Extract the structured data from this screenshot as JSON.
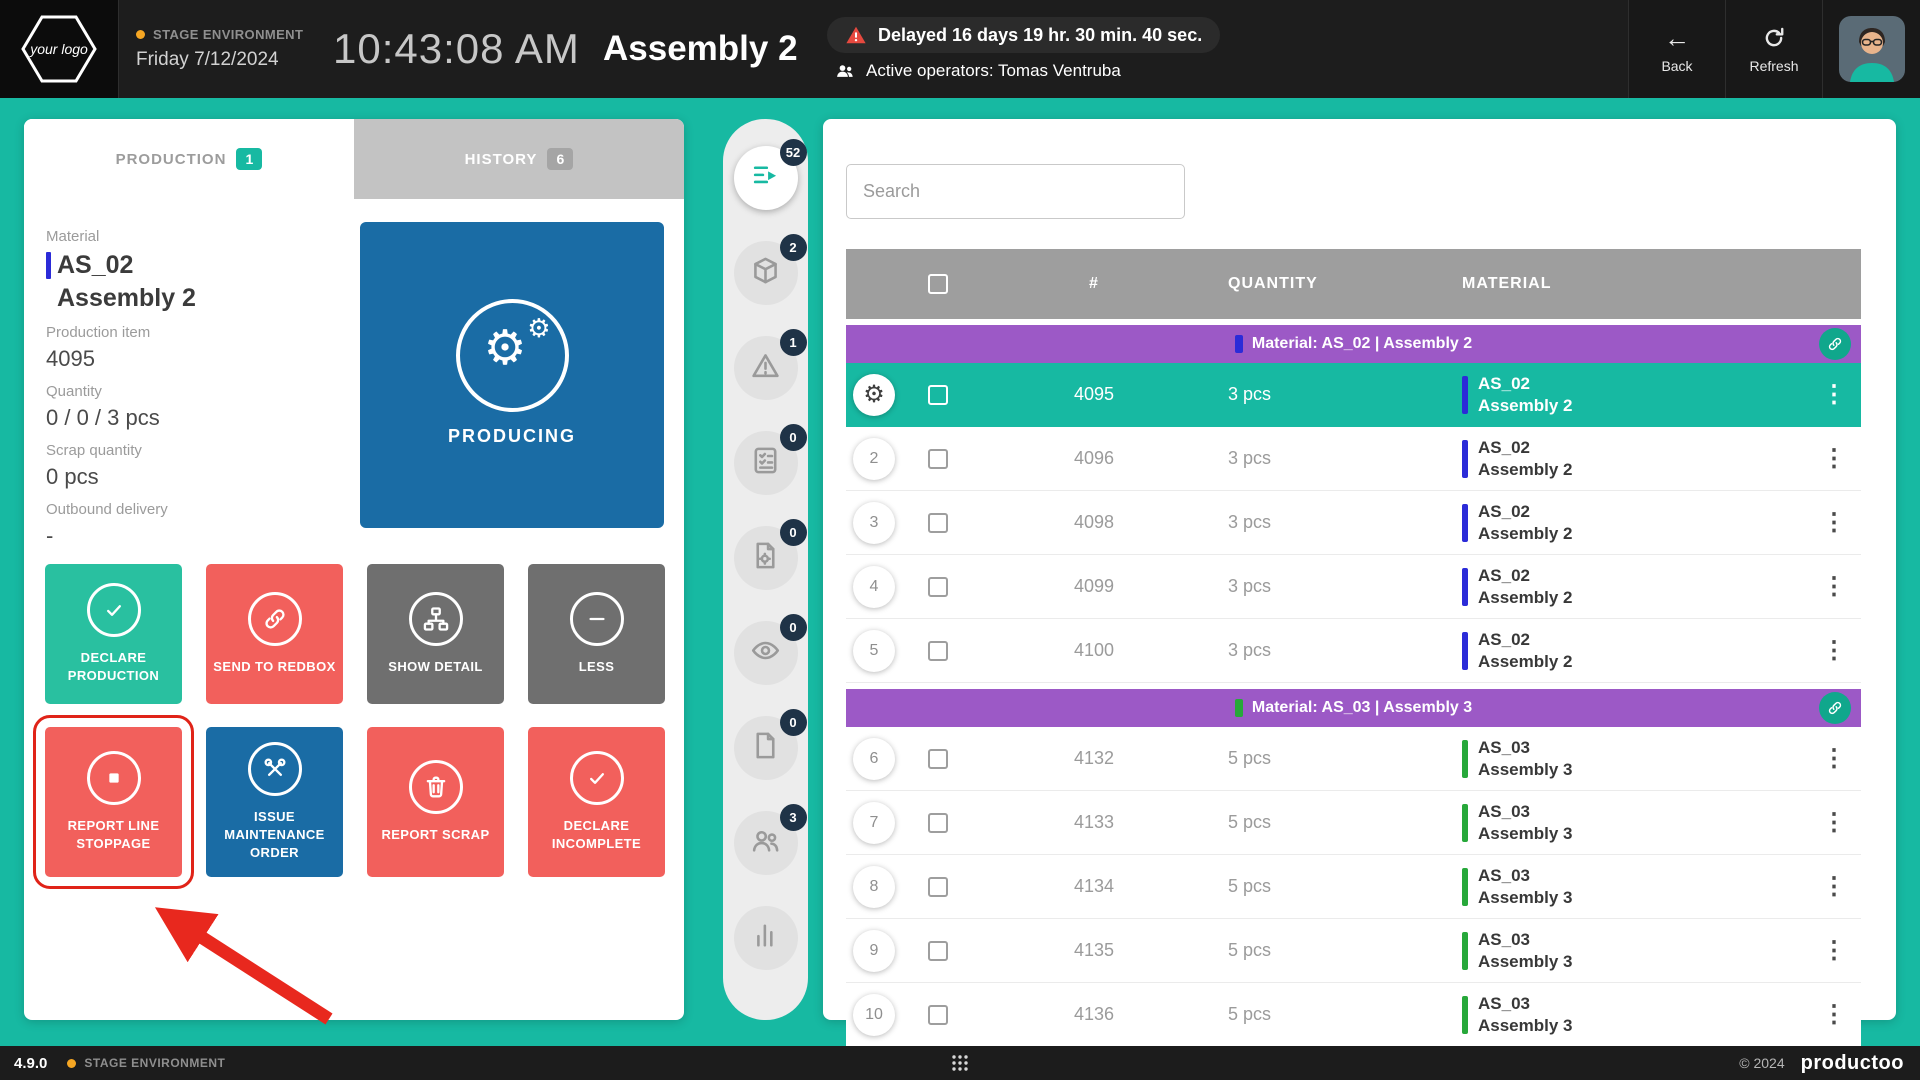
{
  "topbar": {
    "logo": "your logo",
    "environment": "STAGE ENVIRONMENT",
    "date": "Friday 7/12/2024",
    "time": "10:43:08 AM",
    "title": "Assembly 2",
    "alert_text": "Delayed 16 days 19 hr. 30 min. 40 sec.",
    "operators_text": "Active operators: Tomas Ventruba",
    "back_label": "Back",
    "refresh_label": "Refresh"
  },
  "left_panel": {
    "tabs": [
      {
        "label": "PRODUCTION",
        "badge": "1"
      },
      {
        "label": "HISTORY",
        "badge": "6"
      }
    ],
    "material_label": "Material",
    "material_code": "AS_02",
    "material_name": "Assembly 2",
    "production_item_label": "Production item",
    "production_item": "4095",
    "quantity_label": "Quantity",
    "quantity": "0 / 0 / 3 pcs",
    "scrap_label": "Scrap quantity",
    "scrap": "0 pcs",
    "outbound_label": "Outbound delivery",
    "outbound": "-",
    "status_label": "PRODUCING",
    "actions": [
      {
        "label": "DECLARE PRODUCTION",
        "icon": "check-circle",
        "color": "teal"
      },
      {
        "label": "SEND TO REDBOX",
        "icon": "link",
        "color": "red"
      },
      {
        "label": "SHOW DETAIL",
        "icon": "sitemap",
        "color": "gray"
      },
      {
        "label": "LESS",
        "icon": "minus",
        "color": "gray"
      },
      {
        "label": "REPORT LINE STOPPAGE",
        "icon": "stop",
        "color": "red",
        "highlighted": true
      },
      {
        "label": "ISSUE MAINTENANCE ORDER",
        "icon": "tools",
        "color": "blue"
      },
      {
        "label": "REPORT SCRAP",
        "icon": "trash",
        "color": "red"
      },
      {
        "label": "DECLARE INCOMPLETE",
        "icon": "check-circle",
        "color": "red"
      }
    ]
  },
  "rail": {
    "items": [
      {
        "name": "production-list",
        "badge": "52",
        "active": true
      },
      {
        "name": "package",
        "badge": "2"
      },
      {
        "name": "warning",
        "badge": "1"
      },
      {
        "name": "checklist",
        "badge": "0"
      },
      {
        "name": "document-gear",
        "badge": "0"
      },
      {
        "name": "eye",
        "badge": "0"
      },
      {
        "name": "document",
        "badge": "0"
      },
      {
        "name": "team",
        "badge": "3"
      },
      {
        "name": "chart",
        "badge": null
      }
    ]
  },
  "work_queue": {
    "search_placeholder": "Search",
    "columns": {
      "item": "#",
      "quantity": "QUANTITY",
      "material": "MATERIAL"
    },
    "groups": [
      {
        "label": "Material: AS_02 | Assembly 2",
        "color": "#2b2bd8",
        "rows": [
          {
            "num": "",
            "item": "4095",
            "qty": "3 pcs",
            "code": "AS_02",
            "name": "Assembly 2",
            "selected": true
          },
          {
            "num": "2",
            "item": "4096",
            "qty": "3 pcs",
            "code": "AS_02",
            "name": "Assembly 2"
          },
          {
            "num": "3",
            "item": "4098",
            "qty": "3 pcs",
            "code": "AS_02",
            "name": "Assembly 2"
          },
          {
            "num": "4",
            "item": "4099",
            "qty": "3 pcs",
            "code": "AS_02",
            "name": "Assembly 2"
          },
          {
            "num": "5",
            "item": "4100",
            "qty": "3 pcs",
            "code": "AS_02",
            "name": "Assembly 2"
          }
        ]
      },
      {
        "label": "Material: AS_03 | Assembly 3",
        "color": "#27a83a",
        "rows": [
          {
            "num": "6",
            "item": "4132",
            "qty": "5 pcs",
            "code": "AS_03",
            "name": "Assembly 3"
          },
          {
            "num": "7",
            "item": "4133",
            "qty": "5 pcs",
            "code": "AS_03",
            "name": "Assembly 3"
          },
          {
            "num": "8",
            "item": "4134",
            "qty": "5 pcs",
            "code": "AS_03",
            "name": "Assembly 3"
          },
          {
            "num": "9",
            "item": "4135",
            "qty": "5 pcs",
            "code": "AS_03",
            "name": "Assembly 3"
          },
          {
            "num": "10",
            "item": "4136",
            "qty": "5 pcs",
            "code": "AS_03",
            "name": "Assembly 3"
          }
        ]
      }
    ]
  },
  "footer": {
    "version": "4.9.0",
    "environment": "STAGE ENVIRONMENT",
    "copyright": "© 2024",
    "brand": "productoo"
  },
  "colors": {
    "background_teal": "#17b9a2",
    "action_red": "#f2605c",
    "action_blue": "#1a6ca5",
    "action_gray": "#6f6f6f",
    "group_purple": "#9c59c6",
    "material_as02_bar": "#2b2bd8",
    "material_as03_bar": "#27a83a",
    "alert_red": "#e6493f",
    "env_orange": "#f5a623",
    "annotation_red": "#e8281e"
  }
}
